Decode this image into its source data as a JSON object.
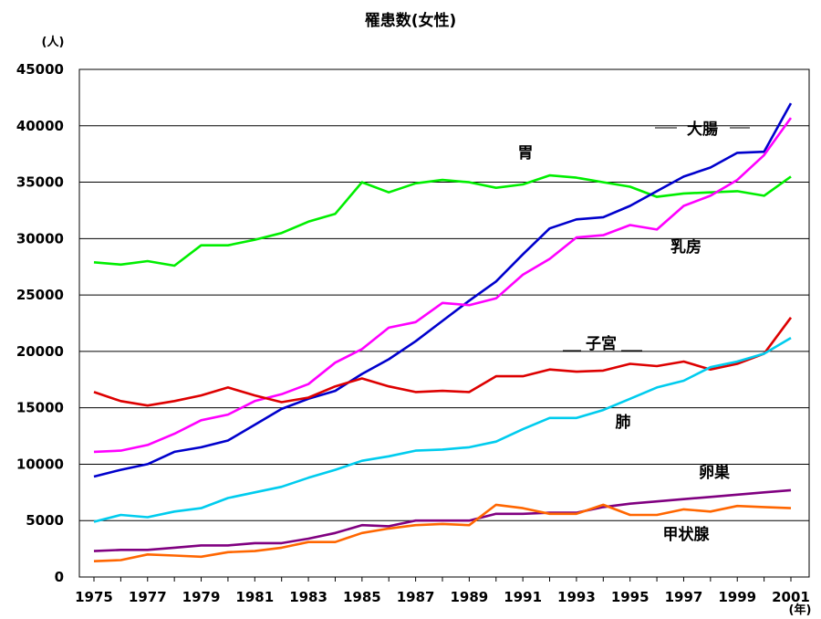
{
  "chart_data": {
    "type": "line",
    "title": "罹患数(女性)",
    "y_unit": "(人)",
    "x_unit": "(年)",
    "ylim": [
      0,
      45000
    ],
    "y_ticks": [
      0,
      5000,
      10000,
      15000,
      20000,
      25000,
      30000,
      35000,
      40000,
      45000
    ],
    "x_tick_labels": [
      "1975",
      "1977",
      "1979",
      "1981",
      "1983",
      "1985",
      "1987",
      "1989",
      "1991",
      "1993",
      "1995",
      "1997",
      "1999",
      "2001"
    ],
    "grid": "horizontal",
    "x": [
      1975,
      1976,
      1977,
      1978,
      1979,
      1980,
      1981,
      1982,
      1983,
      1984,
      1985,
      1986,
      1987,
      1988,
      1989,
      1990,
      1991,
      1992,
      1993,
      1994,
      1995,
      1996,
      1997,
      1998,
      1999,
      2000,
      2001
    ],
    "series": [
      {
        "name": "胃",
        "color": "#00ee00",
        "values": [
          27900,
          27700,
          28000,
          27600,
          29400,
          29400,
          29900,
          30500,
          31500,
          32200,
          35000,
          34100,
          34900,
          35200,
          35000,
          34500,
          34800,
          35600,
          35400,
          35000,
          34600,
          33700,
          34000,
          34100,
          34200,
          33800,
          35500
        ]
      },
      {
        "name": "大腸",
        "color": "#0000cc",
        "values": [
          8900,
          9500,
          10000,
          11100,
          11500,
          12100,
          13500,
          14900,
          15800,
          16500,
          18000,
          19300,
          20900,
          22700,
          24500,
          26200,
          28600,
          30900,
          31700,
          31900,
          32900,
          34200,
          35500,
          36300,
          37600,
          37700,
          42000
        ]
      },
      {
        "name": "乳房",
        "color": "#ff00ff",
        "values": [
          11100,
          11200,
          11700,
          12700,
          13900,
          14400,
          15600,
          16200,
          17100,
          19000,
          20200,
          22100,
          22600,
          24300,
          24100,
          24700,
          26800,
          28200,
          30100,
          30300,
          31200,
          30800,
          32900,
          33800,
          35200,
          37400,
          40700
        ]
      },
      {
        "name": "子宮",
        "color": "#dd0000",
        "values": [
          16400,
          15600,
          15200,
          15600,
          16100,
          16800,
          16100,
          15500,
          15900,
          16900,
          17600,
          16900,
          16400,
          16500,
          16400,
          17800,
          17800,
          18400,
          18200,
          18300,
          18900,
          18700,
          19100,
          18400,
          18900,
          19800,
          23000
        ]
      },
      {
        "name": "肺",
        "color": "#00ccee",
        "values": [
          4900,
          5500,
          5300,
          5800,
          6100,
          7000,
          7500,
          8000,
          8800,
          9500,
          10300,
          10700,
          11200,
          11300,
          11500,
          12000,
          13100,
          14100,
          14100,
          14800,
          15800,
          16800,
          17400,
          18600,
          19100,
          19800,
          21200
        ]
      },
      {
        "name": "卵巣",
        "color": "#800080",
        "values": [
          2300,
          2400,
          2400,
          2600,
          2800,
          2800,
          3000,
          3000,
          3400,
          3900,
          4600,
          4500,
          5000,
          5000,
          5000,
          5600,
          5600,
          5700,
          5700,
          6200,
          6500,
          6700,
          6900,
          7100,
          7300,
          7500,
          7700
        ]
      },
      {
        "name": "甲状腺",
        "color": "#ff6600",
        "values": [
          1400,
          1500,
          2000,
          1900,
          1800,
          2200,
          2300,
          2600,
          3100,
          3100,
          3900,
          4300,
          4600,
          4700,
          4600,
          6400,
          6100,
          5600,
          5600,
          6400,
          5500,
          5500,
          6000,
          5800,
          6300,
          6200,
          6100
        ]
      }
    ]
  }
}
